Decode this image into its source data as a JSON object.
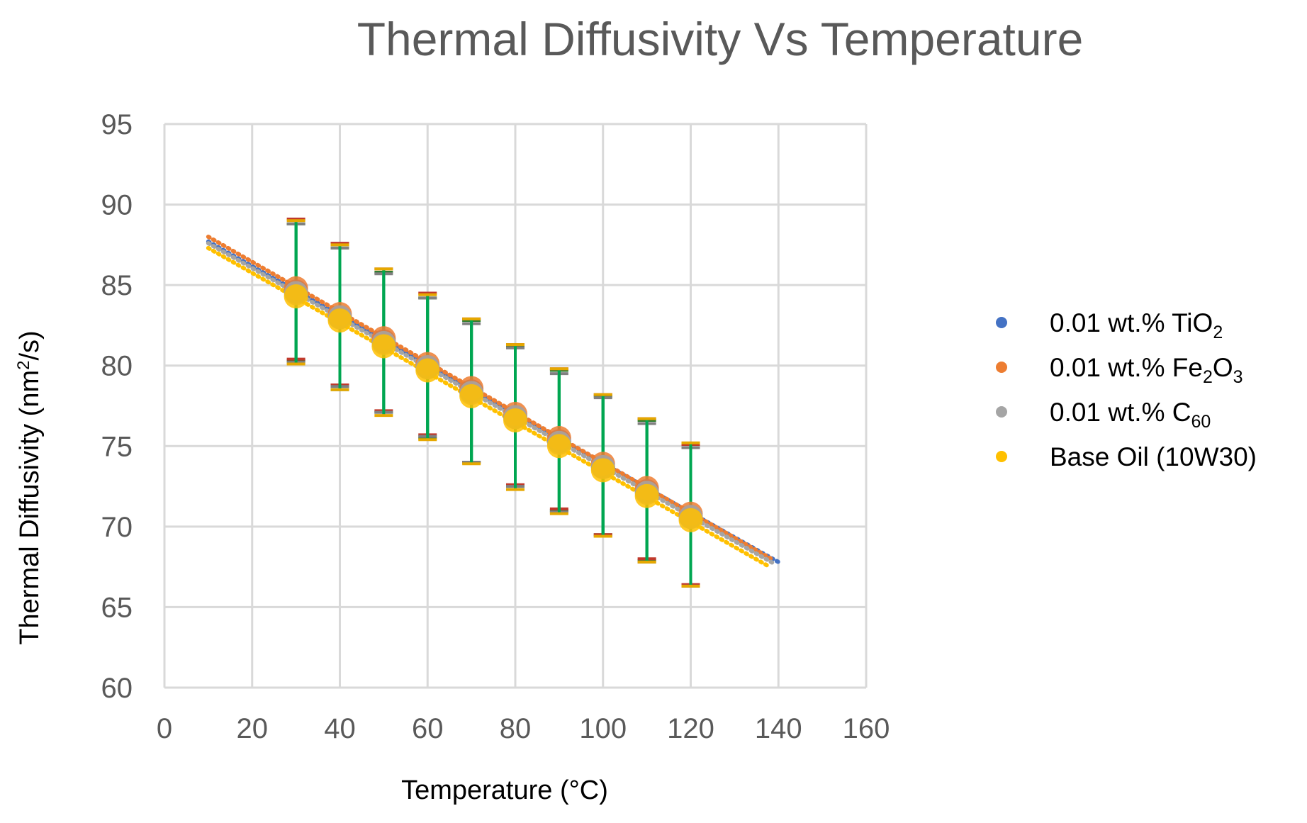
{
  "chart_data": {
    "type": "scatter",
    "title": "Thermal Diffusivity Vs Temperature",
    "xlabel": "Temperature (°C)",
    "ylabel_main": "Thermal Diffusivity (nm",
    "ylabel_sup": "2",
    "ylabel_end": "/s)",
    "xlim": [
      0,
      160
    ],
    "ylim": [
      60,
      95
    ],
    "x_ticks": [
      "0",
      "20",
      "40",
      "60",
      "80",
      "100",
      "120",
      "140",
      "160"
    ],
    "y_ticks": [
      "60",
      "65",
      "70",
      "75",
      "80",
      "85",
      "90",
      "95"
    ],
    "grid": true,
    "legend_position": "right",
    "x": [
      30,
      40,
      50,
      60,
      70,
      80,
      90,
      100,
      110,
      120
    ],
    "series": [
      {
        "name": "0.01 wt.% TiO2",
        "label_parts": [
          "0.01 wt.% TiO",
          "2",
          ""
        ],
        "color": "#4472C4",
        "values": [
          84.6,
          83.0,
          81.5,
          79.9,
          78.4,
          76.8,
          75.3,
          73.7,
          72.2,
          70.6
        ],
        "err_low": [
          4.3,
          4.5,
          4.4,
          4.4,
          4.4,
          4.3,
          4.3,
          4.2,
          4.3,
          4.3
        ],
        "err_high": [
          4.2,
          4.3,
          4.3,
          4.3,
          4.4,
          4.4,
          4.4,
          4.4,
          4.4,
          4.5
        ],
        "trend": {
          "x0": 10,
          "y0": 87.7,
          "x1": 140,
          "y1": 67.8
        }
      },
      {
        "name": "0.01 wt.% Fe2O3",
        "label_parts": [
          "0.01 wt.% Fe",
          "2",
          "O",
          "3"
        ],
        "color": "#ED7D31",
        "values": [
          84.8,
          83.2,
          81.7,
          80.1,
          78.6,
          77.0,
          75.5,
          73.9,
          72.4,
          70.8
        ],
        "err_low": [
          4.4,
          4.4,
          4.5,
          4.4,
          4.6,
          4.4,
          4.4,
          4.4,
          4.4,
          4.4
        ],
        "err_high": [
          4.3,
          4.4,
          4.3,
          4.4,
          4.3,
          4.3,
          4.3,
          4.3,
          4.3,
          4.3
        ],
        "trend": {
          "x0": 10,
          "y0": 88.0,
          "x1": 139,
          "y1": 67.9
        }
      },
      {
        "name": "0.01 wt.% C60",
        "label_parts": [
          "0.01 wt.% C",
          "60",
          ""
        ],
        "color": "#A5A5A5",
        "values": [
          84.5,
          83.0,
          81.4,
          79.9,
          78.3,
          76.8,
          75.2,
          73.7,
          72.1,
          70.6
        ],
        "err_low": [
          4.3,
          4.3,
          4.3,
          4.3,
          4.3,
          4.3,
          4.3,
          4.3,
          4.3,
          4.3
        ],
        "err_high": [
          4.3,
          4.3,
          4.3,
          4.3,
          4.3,
          4.3,
          4.3,
          4.3,
          4.3,
          4.3
        ],
        "trend": {
          "x0": 10,
          "y0": 87.6,
          "x1": 139,
          "y1": 67.7
        }
      },
      {
        "name": "Base Oil (10W30)",
        "label_parts": [
          "Base Oil (10W30)"
        ],
        "color": "#FFC000",
        "values": [
          84.3,
          82.8,
          81.2,
          79.7,
          78.1,
          76.6,
          75.0,
          73.5,
          71.9,
          70.4
        ],
        "err_low": [
          4.2,
          4.3,
          4.3,
          4.3,
          4.2,
          4.3,
          4.2,
          4.1,
          4.1,
          4.1
        ],
        "err_high": [
          4.7,
          4.7,
          4.8,
          4.7,
          4.8,
          4.7,
          4.8,
          4.7,
          4.8,
          4.8
        ],
        "trend": {
          "x0": 10,
          "y0": 87.3,
          "x1": 138,
          "y1": 67.5
        }
      }
    ],
    "error_bar_color": "#00A651"
  }
}
